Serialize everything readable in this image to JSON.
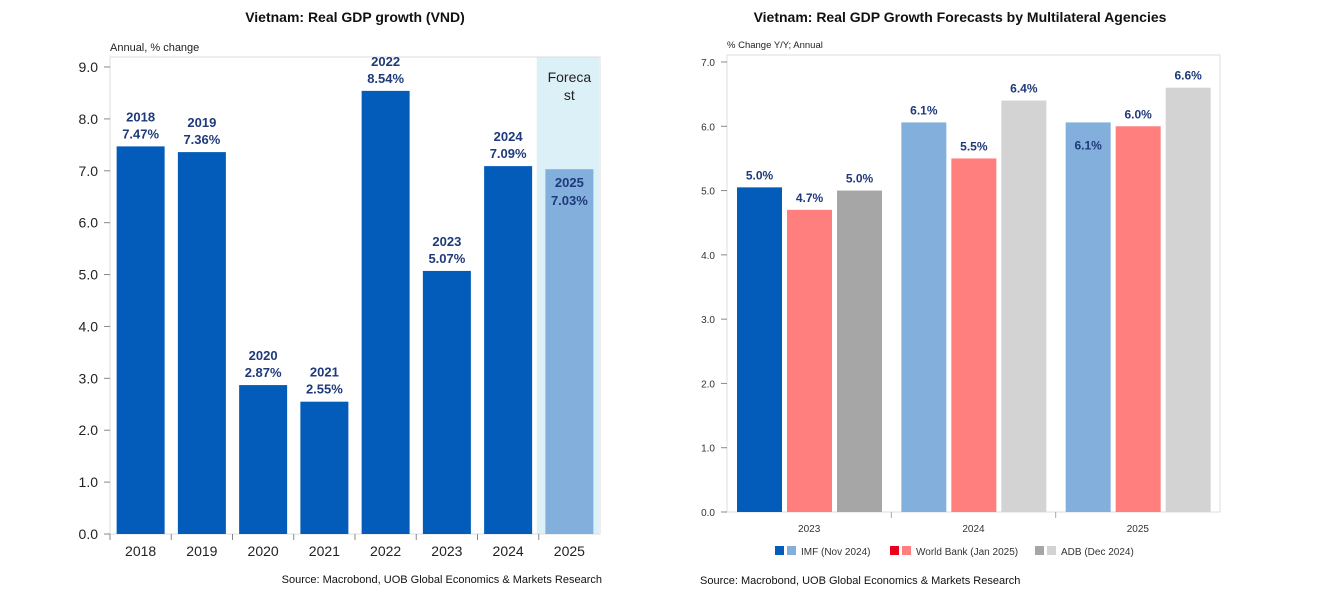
{
  "chart_data": [
    {
      "type": "bar",
      "title": "Vietnam: Real GDP growth (VND)",
      "ylabel": "Annual, % change",
      "ylim": [
        0,
        9
      ],
      "yticks": [
        "0.0",
        "1.0",
        "2.0",
        "3.0",
        "4.0",
        "5.0",
        "6.0",
        "7.0",
        "8.0",
        "9.0"
      ],
      "categories": [
        "2018",
        "2019",
        "2020",
        "2021",
        "2022",
        "2023",
        "2024",
        "2025"
      ],
      "values": [
        7.47,
        7.36,
        2.87,
        2.55,
        8.54,
        5.07,
        7.09,
        7.03
      ],
      "value_labels": [
        "7.47%",
        "7.36%",
        "2.87%",
        "2.55%",
        "8.54%",
        "5.07%",
        "7.09%",
        "7.03%"
      ],
      "forecast_label": [
        "Foreca",
        "st"
      ],
      "forecast_categories": [
        "2025"
      ],
      "colors": {
        "actual": "#045cba",
        "forecast": "#82afdc",
        "forecast_band": "#dcf0f8",
        "label": "#1f3a7a"
      },
      "source": "Source: Macrobond, UOB Global Economics & Markets Research"
    },
    {
      "type": "bar",
      "title": "Vietnam: Real GDP Growth Forecasts by Multilateral Agencies",
      "ylabel": "% Change Y/Y; Annual",
      "ylim": [
        0,
        7
      ],
      "yticks": [
        "0.0",
        "1.0",
        "2.0",
        "3.0",
        "4.0",
        "5.0",
        "6.0",
        "7.0"
      ],
      "categories": [
        "2023",
        "2024",
        "2025"
      ],
      "series": [
        {
          "name": "IMF (Nov 2024)",
          "values": [
            5.05,
            6.06,
            6.06
          ],
          "labels": [
            "5.0%",
            "6.1%",
            "6.1%"
          ],
          "colors": [
            "#045cba",
            "#82afdc",
            "#82afdc"
          ]
        },
        {
          "name": "World Bank (Jan 2025)",
          "values": [
            4.7,
            5.5,
            6.0
          ],
          "labels": [
            "4.7%",
            "5.5%",
            "6.0%"
          ],
          "colors": [
            "#ff7f7f",
            "#ff7f7f",
            "#ff7f7f"
          ]
        },
        {
          "name": "ADB (Dec 2024)",
          "values": [
            5.0,
            6.4,
            6.6
          ],
          "labels": [
            "5.0%",
            "6.4%",
            "6.6%"
          ],
          "colors": [
            "#a6a6a6",
            "#d3d3d3",
            "#d3d3d3"
          ]
        }
      ],
      "legend_swatches": [
        [
          "#045cba",
          "#82afdc"
        ],
        [
          "#e8001c",
          "#ff7f7f"
        ],
        [
          "#a6a6a6",
          "#d3d3d3"
        ]
      ],
      "legend_position": "bottom",
      "source": "Source: Macrobond, UOB Global Economics & Markets Research"
    }
  ]
}
